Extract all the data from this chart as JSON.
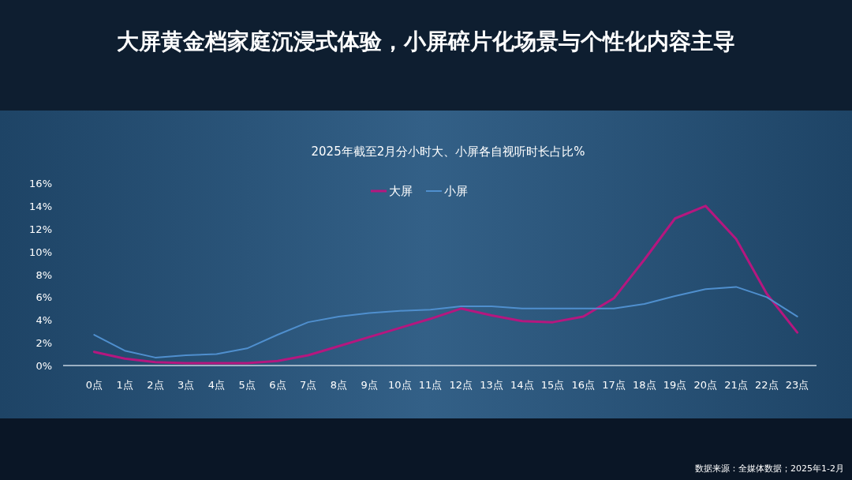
{
  "chart_data": {
    "type": "line",
    "title": "大屏黄金档家庭沉浸式体验，小屏碎片化场景与个性化内容主导",
    "subtitle": "2025年截至2月分小时大、小屏各自视听时长占比%",
    "categories": [
      "0点",
      "1点",
      "2点",
      "3点",
      "4点",
      "5点",
      "6点",
      "7点",
      "8点",
      "9点",
      "10点",
      "11点",
      "12点",
      "13点",
      "14点",
      "15点",
      "16点",
      "17点",
      "18点",
      "19点",
      "20点",
      "21点",
      "22点",
      "23点"
    ],
    "series": [
      {
        "name": "大屏",
        "color": "#b5177f",
        "values": [
          1.2,
          0.6,
          0.3,
          0.2,
          0.2,
          0.2,
          0.4,
          0.9,
          1.7,
          2.5,
          3.3,
          4.1,
          5.0,
          4.4,
          3.9,
          3.8,
          4.3,
          5.9,
          9.3,
          12.9,
          14.0,
          11.1,
          6.3,
          2.9
        ]
      },
      {
        "name": "小屏",
        "color": "#4f8fce",
        "values": [
          2.7,
          1.3,
          0.7,
          0.9,
          1.0,
          1.5,
          2.7,
          3.8,
          4.3,
          4.6,
          4.8,
          4.9,
          5.2,
          5.2,
          5.0,
          5.0,
          5.0,
          5.0,
          5.4,
          6.1,
          6.7,
          6.9,
          6.0,
          4.3
        ]
      }
    ],
    "ylim": [
      0,
      16
    ],
    "yticks": [
      {
        "value": 0,
        "label": "0%"
      },
      {
        "value": 2,
        "label": "2%"
      },
      {
        "value": 4,
        "label": "4%"
      },
      {
        "value": 6,
        "label": "6%"
      },
      {
        "value": 8,
        "label": "8%"
      },
      {
        "value": 10,
        "label": "10%"
      },
      {
        "value": 12,
        "label": "12%"
      },
      {
        "value": 14,
        "label": "14%"
      },
      {
        "value": 16,
        "label": "16%"
      }
    ],
    "grid": false,
    "legend": "top",
    "marker": "none",
    "line_style": "solid",
    "annotations": [
      "数据来源：全媒体数据；2025年1-2月"
    ]
  }
}
